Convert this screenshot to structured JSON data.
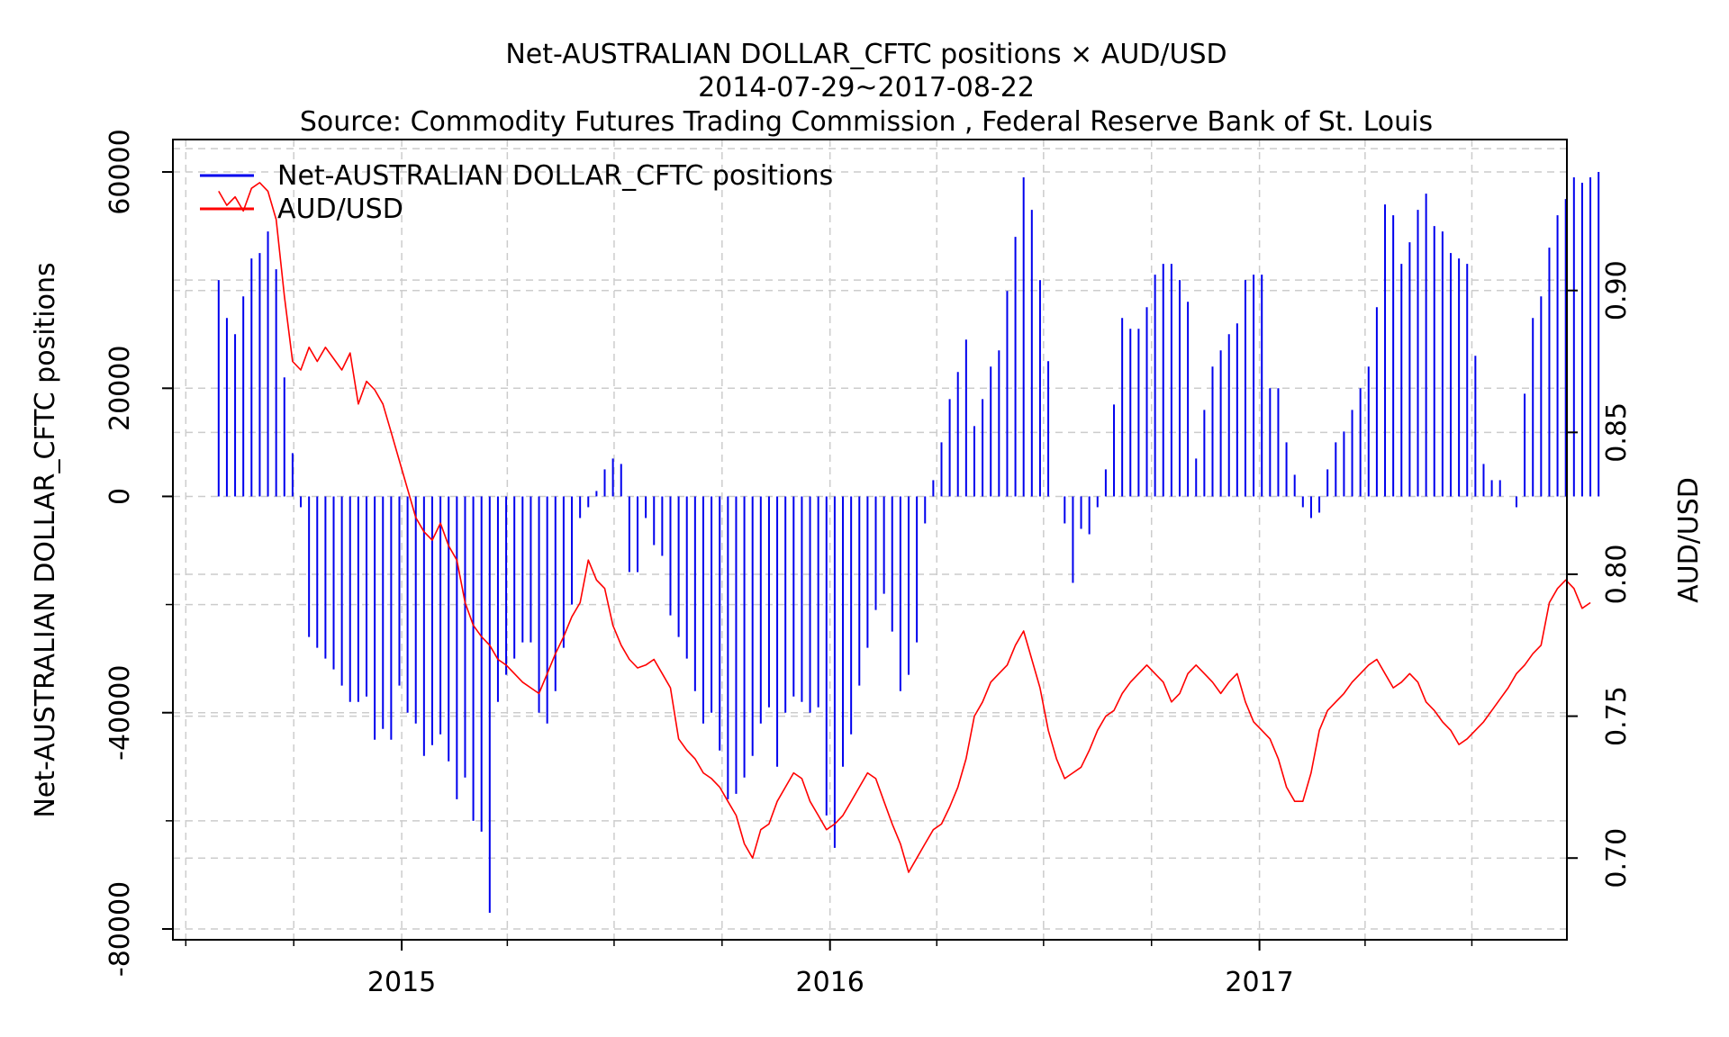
{
  "chart_data": {
    "type": "bar+line",
    "title": "Net-AUSTRALIAN DOLLAR_CFTC positions × AUD/USD",
    "subtitle": "2014-07-29~2017-08-22",
    "source": "Source: Commodity Futures Trading Commission , Federal Reserve Bank of St. Louis",
    "ylabel_left": "Net-AUSTRALIAN DOLLAR_CFTC positions",
    "ylabel_right": "AUD/USD",
    "x_range": [
      "2014-06-20",
      "2017-09-20"
    ],
    "x_ticks": [
      "2015",
      "2016",
      "2017"
    ],
    "x_tick_dates": [
      "2015-01-01",
      "2016-01-01",
      "2017-01-01"
    ],
    "ylim_left": [
      -82000,
      66000
    ],
    "y_ticks_left": [
      "60000",
      "20000",
      "0",
      "-40000",
      "-80000"
    ],
    "y_tick_values_left": [
      60000,
      20000,
      0,
      -40000,
      -80000
    ],
    "ylim_right": [
      0.6712,
      0.9532
    ],
    "y_ticks_right": [
      "0.90",
      "0.85",
      "0.80",
      "0.75",
      "0.70"
    ],
    "y_tick_values_right": [
      0.9,
      0.85,
      0.8,
      0.75,
      0.7
    ],
    "grid": true,
    "legend_position": "top-left",
    "series": [
      {
        "name": "Net-AUSTRALIAN DOLLAR_CFTC positions",
        "type": "bar",
        "axis": "left",
        "color": "#0000ee",
        "start_date": "2014-07-29",
        "interval_days": 7,
        "values": [
          40000,
          33000,
          30000,
          37000,
          44000,
          45000,
          49000,
          42000,
          22000,
          8000,
          -2000,
          -26000,
          -28000,
          -30000,
          -32000,
          -35000,
          -38000,
          -38000,
          -37000,
          -45000,
          -43000,
          -45000,
          -35000,
          -40000,
          -42000,
          -48000,
          -46000,
          -44000,
          -49000,
          -56000,
          -52000,
          -60000,
          -62000,
          -77000,
          -38000,
          -33000,
          -30000,
          -27000,
          -27000,
          -40000,
          -42000,
          -36000,
          -28000,
          -20000,
          -4000,
          -2000,
          1000,
          5000,
          7000,
          6000,
          -14000,
          -14000,
          -4000,
          -9000,
          -11000,
          -22000,
          -26000,
          -30000,
          -36000,
          -42000,
          -40000,
          -47000,
          -56000,
          -55000,
          -52000,
          -48000,
          -42000,
          -39000,
          -50000,
          -40000,
          -37000,
          -38000,
          -40000,
          -39000,
          -59000,
          -65000,
          -50000,
          -44000,
          -35000,
          -28000,
          -21000,
          -18000,
          -25000,
          -36000,
          -33000,
          -27000,
          -5000,
          3000,
          10000,
          18000,
          23000,
          29000,
          13000,
          18000,
          24000,
          27000,
          38000,
          48000,
          59000,
          53000,
          40000,
          25000,
          0,
          -5000,
          -16000,
          -6000,
          -7000,
          -2000,
          5000,
          17000,
          33000,
          31000,
          31000,
          35000,
          41000,
          43000,
          43000,
          40000,
          36000,
          7000,
          16000,
          24000,
          27000,
          30000,
          32000,
          40000,
          41000,
          41000,
          20000,
          20000,
          10000,
          4000,
          -2000,
          -4000,
          -3000,
          5000,
          10000,
          12000,
          16000,
          20000,
          24000,
          35000,
          54000,
          52000,
          43000,
          47000,
          53000,
          56000,
          50000,
          49000,
          45000,
          44000,
          43000,
          26000,
          6000,
          3000,
          3000,
          0,
          -2000,
          19000,
          33000,
          37000,
          46000,
          52000,
          55000,
          59000,
          58000,
          59000,
          60000
        ]
      },
      {
        "name": "AUD/USD",
        "type": "line",
        "axis": "right",
        "color": "#ff0000",
        "start_date": "2014-07-29",
        "interval_days": 7,
        "values": [
          0.935,
          0.93,
          0.933,
          0.928,
          0.936,
          0.938,
          0.935,
          0.925,
          0.898,
          0.875,
          0.872,
          0.88,
          0.875,
          0.88,
          0.876,
          0.872,
          0.878,
          0.86,
          0.868,
          0.865,
          0.86,
          0.85,
          0.84,
          0.83,
          0.82,
          0.815,
          0.812,
          0.818,
          0.81,
          0.805,
          0.79,
          0.782,
          0.778,
          0.775,
          0.77,
          0.768,
          0.765,
          0.762,
          0.76,
          0.758,
          0.765,
          0.772,
          0.778,
          0.785,
          0.79,
          0.805,
          0.798,
          0.795,
          0.782,
          0.775,
          0.77,
          0.767,
          0.768,
          0.77,
          0.765,
          0.76,
          0.742,
          0.738,
          0.735,
          0.73,
          0.728,
          0.725,
          0.72,
          0.715,
          0.705,
          0.7,
          0.71,
          0.712,
          0.72,
          0.725,
          0.73,
          0.728,
          0.72,
          0.715,
          0.71,
          0.712,
          0.715,
          0.72,
          0.725,
          0.73,
          0.728,
          0.72,
          0.712,
          0.705,
          0.695,
          0.7,
          0.705,
          0.71,
          0.712,
          0.718,
          0.725,
          0.735,
          0.75,
          0.755,
          0.762,
          0.765,
          0.768,
          0.775,
          0.78,
          0.77,
          0.76,
          0.745,
          0.735,
          0.728,
          0.73,
          0.732,
          0.738,
          0.745,
          0.75,
          0.752,
          0.758,
          0.762,
          0.765,
          0.768,
          0.765,
          0.762,
          0.755,
          0.758,
          0.765,
          0.768,
          0.765,
          0.762,
          0.758,
          0.762,
          0.765,
          0.755,
          0.748,
          0.745,
          0.742,
          0.735,
          0.725,
          0.72,
          0.72,
          0.73,
          0.745,
          0.752,
          0.755,
          0.758,
          0.762,
          0.765,
          0.768,
          0.77,
          0.765,
          0.76,
          0.762,
          0.765,
          0.762,
          0.755,
          0.752,
          0.748,
          0.745,
          0.74,
          0.742,
          0.745,
          0.748,
          0.752,
          0.756,
          0.76,
          0.765,
          0.768,
          0.772,
          0.775,
          0.79,
          0.795,
          0.798,
          0.795,
          0.788,
          0.79
        ]
      }
    ]
  }
}
